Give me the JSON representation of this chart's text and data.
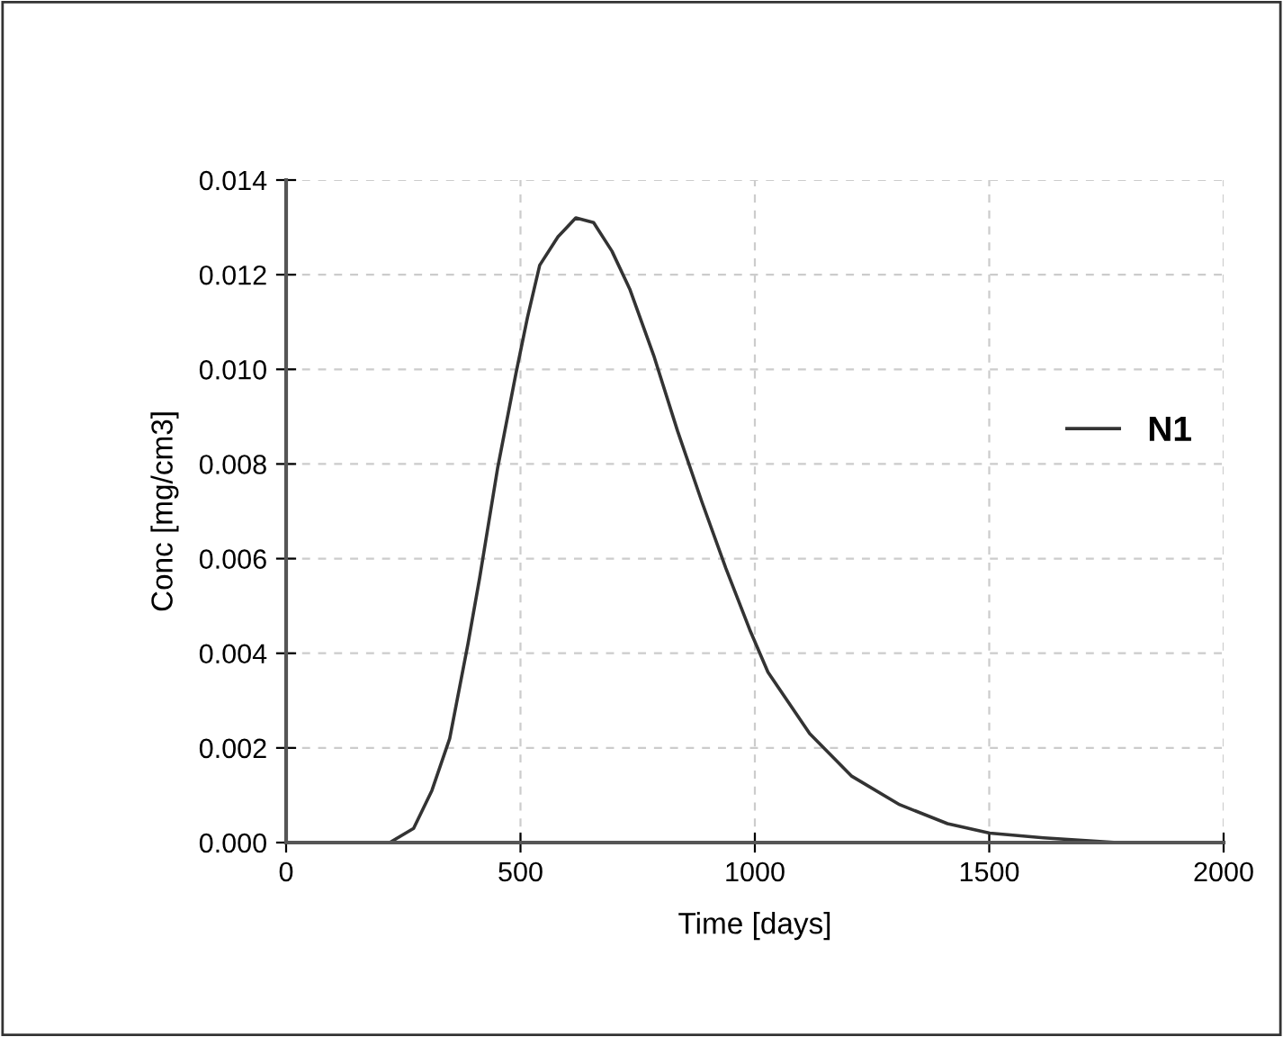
{
  "chart_data": {
    "type": "line",
    "xlabel": "Time [days]",
    "ylabel": "Conc [mg/cm3]",
    "xlim": [
      0,
      2000
    ],
    "xticks": [
      0,
      500,
      1000,
      1500,
      2000
    ],
    "ylim": [
      0,
      0.014
    ],
    "yticks": [
      {
        "value": 0,
        "label": "0.000"
      },
      {
        "value": 0.002,
        "label": "0.002"
      },
      {
        "value": 0.004,
        "label": "0.004"
      },
      {
        "value": 0.006,
        "label": "0.006"
      },
      {
        "value": 0.008,
        "label": "0.008"
      },
      {
        "value": 0.01,
        "label": "0.010"
      },
      {
        "value": 0.012,
        "label": "0.012"
      },
      {
        "value": 0.014,
        "label": "0.014"
      }
    ],
    "grid": true,
    "legend": "right",
    "line_style": "solid",
    "marker": "none",
    "series": [
      {
        "name": "N1",
        "color": "#333333",
        "x": [
          221,
          272,
          311,
          349,
          388,
          413,
          451,
          490,
          515,
          541,
          580,
          618,
          656,
          695,
          733,
          784,
          835,
          887,
          938,
          989,
          1028,
          1117,
          1207,
          1309,
          1411,
          1501,
          1616,
          1770
        ],
        "values": [
          0,
          0.0003,
          0.0011,
          0.0022,
          0.0042,
          0.0056,
          0.0079,
          0.0099,
          0.0111,
          0.0122,
          0.0128,
          0.0132,
          0.0131,
          0.0125,
          0.0117,
          0.0103,
          0.0087,
          0.0072,
          0.0058,
          0.0045,
          0.0036,
          0.0023,
          0.0014,
          0.0008,
          0.0004,
          0.0002,
          0.0001,
          0
        ]
      }
    ]
  }
}
